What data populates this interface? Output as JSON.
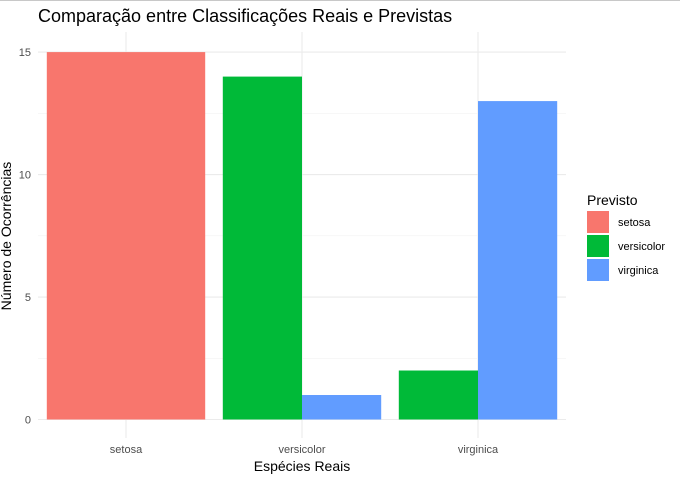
{
  "chart_data": {
    "type": "bar",
    "title": "Comparação entre Classificações Reais e Previstas",
    "xlabel": "Espécies Reais",
    "ylabel": "Número de Ocorrências",
    "categories": [
      "setosa",
      "versicolor",
      "virginica"
    ],
    "series": [
      {
        "name": "setosa",
        "color": "#F8766D",
        "values": [
          15,
          0,
          0
        ]
      },
      {
        "name": "versicolor",
        "color": "#00BA38",
        "values": [
          0,
          14,
          2
        ]
      },
      {
        "name": "virginica",
        "color": "#619CFF",
        "values": [
          0,
          1,
          13
        ]
      }
    ],
    "bar_layout": "dodge",
    "ylim": [
      0,
      15.75
    ],
    "yticks": [
      0,
      5,
      10,
      15
    ],
    "grid": true,
    "legend": {
      "title": "Previsto",
      "placement": "right"
    }
  }
}
